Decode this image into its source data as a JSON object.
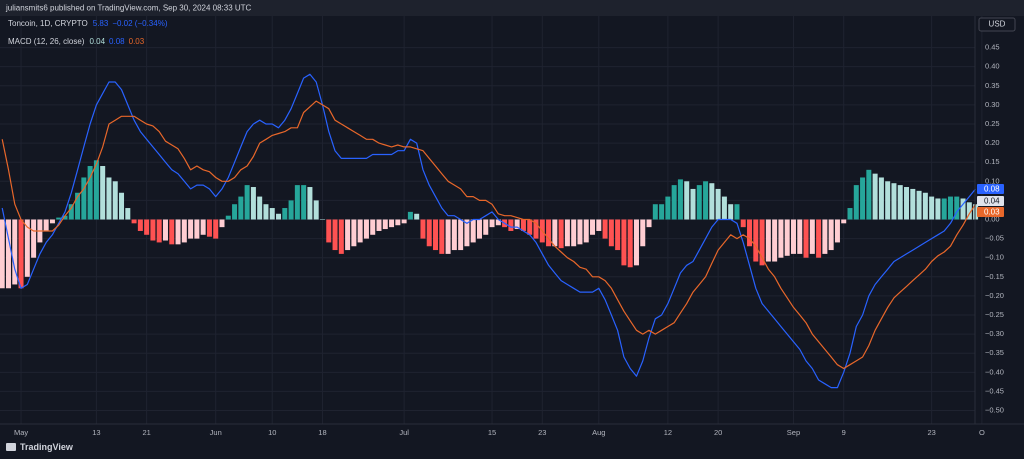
{
  "header": {
    "publisher": "juliansmits6 published on TradingView.com, Sep 30, 2024 08:33 UTC",
    "currency": "USD",
    "brand": "TradingView"
  },
  "symbol": {
    "name": "Toncoin, 1D, CRYPTO",
    "price": "5.83",
    "change": "−0.02 (−0.34%)"
  },
  "indicator": {
    "name": "MACD (12, 26, close)",
    "histogram": "0.04",
    "macd": "0.08",
    "signal": "0.03"
  },
  "chart_data": {
    "type": "macd",
    "grid": true,
    "histogram_colors": {
      "up_rising": "#26a69a",
      "up_falling": "#b2dfdb",
      "down_falling": "#ff5252",
      "down_rising": "#ffcdd2"
    },
    "series": [
      {
        "type": "bar",
        "values": [
          -0.18,
          -0.18,
          -0.17,
          -0.18,
          -0.15,
          -0.1,
          -0.06,
          -0.03,
          -0.01,
          0.005,
          0.01,
          0.04,
          0.07,
          0.11,
          0.14,
          0.155,
          0.14,
          0.11,
          0.1,
          0.07,
          0.03,
          -0.01,
          -0.03,
          -0.04,
          -0.055,
          -0.06,
          -0.055,
          -0.065,
          -0.065,
          -0.06,
          -0.05,
          -0.05,
          -0.04,
          -0.045,
          -0.05,
          -0.02,
          0.01,
          0.04,
          0.06,
          0.09,
          0.085,
          0.06,
          0.04,
          0.03,
          0.015,
          0.03,
          0.05,
          0.09,
          0.09,
          0.085,
          0.05,
          0.0,
          -0.06,
          -0.08,
          -0.09,
          -0.08,
          -0.07,
          -0.06,
          -0.05,
          -0.04,
          -0.03,
          -0.025,
          -0.02,
          -0.015,
          -0.01,
          0.02,
          0.015,
          -0.05,
          -0.07,
          -0.08,
          -0.09,
          -0.09,
          -0.08,
          -0.08,
          -0.07,
          -0.06,
          -0.05,
          -0.04,
          -0.02,
          -0.015,
          -0.02,
          -0.03,
          -0.025,
          -0.03,
          -0.04,
          -0.05,
          -0.06,
          -0.07,
          -0.07,
          -0.075,
          -0.07,
          -0.07,
          -0.065,
          -0.06,
          -0.04,
          -0.03,
          -0.05,
          -0.07,
          -0.08,
          -0.12,
          -0.125,
          -0.12,
          -0.07,
          -0.02,
          0.04,
          0.04,
          0.06,
          0.09,
          0.105,
          0.1,
          0.08,
          0.09,
          0.1,
          0.095,
          0.08,
          0.06,
          0.04,
          0.04,
          -0.02,
          -0.07,
          -0.11,
          -0.12,
          -0.11,
          -0.11,
          -0.1,
          -0.095,
          -0.09,
          -0.09,
          -0.1,
          -0.09,
          -0.1,
          -0.09,
          -0.08,
          -0.06,
          -0.01,
          0.03,
          0.09,
          0.11,
          0.13,
          0.12,
          0.11,
          0.1,
          0.095,
          0.09,
          0.085,
          0.08,
          0.075,
          0.07,
          0.06,
          0.055,
          0.055,
          0.06,
          0.06,
          0.055,
          0.045,
          0.04
        ]
      },
      {
        "type": "line",
        "color": "#2962ff",
        "values": [
          0.03,
          -0.05,
          -0.13,
          -0.18,
          -0.17,
          -0.13,
          -0.09,
          -0.06,
          -0.04,
          -0.01,
          0.02,
          0.07,
          0.13,
          0.19,
          0.25,
          0.3,
          0.33,
          0.36,
          0.36,
          0.34,
          0.3,
          0.26,
          0.23,
          0.21,
          0.19,
          0.17,
          0.15,
          0.13,
          0.12,
          0.1,
          0.08,
          0.09,
          0.09,
          0.08,
          0.06,
          0.08,
          0.11,
          0.15,
          0.19,
          0.23,
          0.25,
          0.26,
          0.25,
          0.25,
          0.24,
          0.26,
          0.29,
          0.33,
          0.37,
          0.38,
          0.36,
          0.3,
          0.23,
          0.18,
          0.16,
          0.16,
          0.16,
          0.16,
          0.16,
          0.17,
          0.17,
          0.17,
          0.17,
          0.18,
          0.18,
          0.21,
          0.2,
          0.13,
          0.09,
          0.06,
          0.03,
          0.01,
          0.01,
          0.0,
          -0.01,
          0.0,
          0.0,
          0.01,
          0.02,
          0.0,
          -0.01,
          -0.02,
          -0.02,
          -0.03,
          -0.04,
          -0.06,
          -0.09,
          -0.12,
          -0.14,
          -0.16,
          -0.17,
          -0.18,
          -0.19,
          -0.19,
          -0.19,
          -0.18,
          -0.21,
          -0.25,
          -0.29,
          -0.36,
          -0.39,
          -0.41,
          -0.37,
          -0.31,
          -0.26,
          -0.25,
          -0.22,
          -0.18,
          -0.14,
          -0.12,
          -0.11,
          -0.08,
          -0.05,
          -0.02,
          0.0,
          0.0,
          0.0,
          -0.01,
          -0.06,
          -0.12,
          -0.18,
          -0.22,
          -0.24,
          -0.26,
          -0.28,
          -0.3,
          -0.32,
          -0.34,
          -0.37,
          -0.39,
          -0.42,
          -0.43,
          -0.44,
          -0.44,
          -0.4,
          -0.35,
          -0.28,
          -0.25,
          -0.2,
          -0.17,
          -0.15,
          -0.13,
          -0.11,
          -0.1,
          -0.09,
          -0.08,
          -0.07,
          -0.06,
          -0.05,
          -0.04,
          -0.03,
          -0.01,
          0.02,
          0.04,
          0.06,
          0.08
        ]
      },
      {
        "type": "line",
        "color": "#e8672a",
        "values": [
          0.21,
          0.13,
          0.04,
          0.0,
          -0.02,
          -0.03,
          -0.03,
          -0.03,
          -0.03,
          -0.015,
          0.01,
          0.03,
          0.06,
          0.08,
          0.11,
          0.145,
          0.19,
          0.25,
          0.26,
          0.27,
          0.27,
          0.27,
          0.26,
          0.25,
          0.245,
          0.23,
          0.205,
          0.195,
          0.185,
          0.16,
          0.13,
          0.14,
          0.13,
          0.125,
          0.11,
          0.1,
          0.1,
          0.11,
          0.13,
          0.14,
          0.165,
          0.2,
          0.21,
          0.22,
          0.225,
          0.23,
          0.24,
          0.24,
          0.28,
          0.295,
          0.31,
          0.3,
          0.29,
          0.26,
          0.25,
          0.24,
          0.23,
          0.22,
          0.21,
          0.21,
          0.2,
          0.195,
          0.19,
          0.195,
          0.19,
          0.19,
          0.185,
          0.18,
          0.16,
          0.14,
          0.12,
          0.1,
          0.09,
          0.08,
          0.06,
          0.06,
          0.05,
          0.05,
          0.04,
          0.015,
          0.01,
          0.01,
          0.005,
          0.0,
          0.0,
          -0.01,
          -0.03,
          -0.05,
          -0.07,
          -0.085,
          -0.1,
          -0.11,
          -0.125,
          -0.13,
          -0.15,
          -0.15,
          -0.16,
          -0.18,
          -0.21,
          -0.24,
          -0.265,
          -0.29,
          -0.3,
          -0.29,
          -0.3,
          -0.29,
          -0.28,
          -0.27,
          -0.245,
          -0.22,
          -0.19,
          -0.17,
          -0.15,
          -0.115,
          -0.08,
          -0.06,
          -0.04,
          -0.05,
          -0.04,
          -0.05,
          -0.07,
          -0.1,
          -0.13,
          -0.15,
          -0.18,
          -0.205,
          -0.23,
          -0.25,
          -0.27,
          -0.3,
          -0.32,
          -0.34,
          -0.36,
          -0.38,
          -0.39,
          -0.38,
          -0.37,
          -0.36,
          -0.33,
          -0.29,
          -0.26,
          -0.23,
          -0.205,
          -0.19,
          -0.175,
          -0.16,
          -0.145,
          -0.13,
          -0.11,
          -0.095,
          -0.085,
          -0.07,
          -0.04,
          -0.015,
          0.015,
          0.04
        ]
      }
    ],
    "ylim": [
      -0.53,
      0.53
    ],
    "yticks": [
      {
        "value": 0.45,
        "label": "0.45"
      },
      {
        "value": 0.4,
        "label": "0.40"
      },
      {
        "value": 0.35,
        "label": "0.35"
      },
      {
        "value": 0.3,
        "label": "0.30"
      },
      {
        "value": 0.25,
        "label": "0.25"
      },
      {
        "value": 0.2,
        "label": "0.20"
      },
      {
        "value": 0.15,
        "label": "0.15"
      },
      {
        "value": 0.1,
        "label": "0.10"
      },
      {
        "value": 0.05,
        "label": "0.05"
      },
      {
        "value": 0,
        "label": "0.00"
      },
      {
        "value": -0.05,
        "label": "−0.05"
      },
      {
        "value": -0.1,
        "label": "−0.10"
      },
      {
        "value": -0.15,
        "label": "−0.15"
      },
      {
        "value": -0.2,
        "label": "−0.20"
      },
      {
        "value": -0.25,
        "label": "−0.25"
      },
      {
        "value": -0.3,
        "label": "−0.30"
      },
      {
        "value": -0.35,
        "label": "−0.35"
      },
      {
        "value": -0.4,
        "label": "−0.40"
      },
      {
        "value": -0.45,
        "label": "−0.45"
      },
      {
        "value": -0.5,
        "label": "−0.50"
      }
    ],
    "xticks": [
      {
        "value": 3,
        "label": "May"
      },
      {
        "value": 15,
        "label": "13"
      },
      {
        "value": 23,
        "label": "21"
      },
      {
        "value": 34,
        "label": "Jun"
      },
      {
        "value": 43,
        "label": "10"
      },
      {
        "value": 51,
        "label": "18"
      },
      {
        "value": 64,
        "label": "Jul"
      },
      {
        "value": 78,
        "label": "15"
      },
      {
        "value": 86,
        "label": "23"
      },
      {
        "value": 95,
        "label": "Aug"
      },
      {
        "value": 106,
        "label": "12"
      },
      {
        "value": 114,
        "label": "20"
      },
      {
        "value": 126,
        "label": "Sep"
      },
      {
        "value": 134,
        "label": "9"
      },
      {
        "value": 148,
        "label": "23"
      },
      {
        "value": 156,
        "label": "O"
      }
    ]
  }
}
